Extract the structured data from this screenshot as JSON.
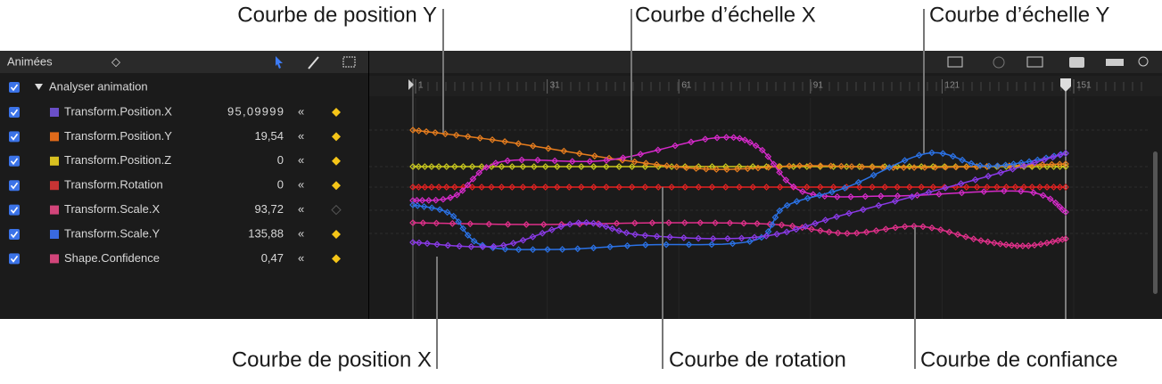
{
  "callouts": {
    "top": [
      "Courbe de position Y",
      "Courbe d’échelle X",
      "Courbe d’échelle Y"
    ],
    "bottom": [
      "Courbe de position X",
      "Courbe de rotation",
      "Courbe de confiance"
    ]
  },
  "panel": {
    "header": "Animées",
    "group": "Analyser animation",
    "rows": [
      {
        "name": "Transform.Position.X",
        "value": "95,09999"
      },
      {
        "name": "Transform.Position.Y",
        "value": "19,54"
      },
      {
        "name": "Transform.Position.Z",
        "value": "0"
      },
      {
        "name": "Transform.Rotation",
        "value": "0"
      },
      {
        "name": "Transform.Scale.X",
        "value": "93,72"
      },
      {
        "name": "Transform.Scale.Y",
        "value": "135,88"
      },
      {
        "name": "Shape.Confidence",
        "value": "0,47"
      }
    ]
  },
  "timeline": {
    "ruler": [
      "1",
      "31",
      "61",
      "91",
      "121",
      "151"
    ]
  }
}
